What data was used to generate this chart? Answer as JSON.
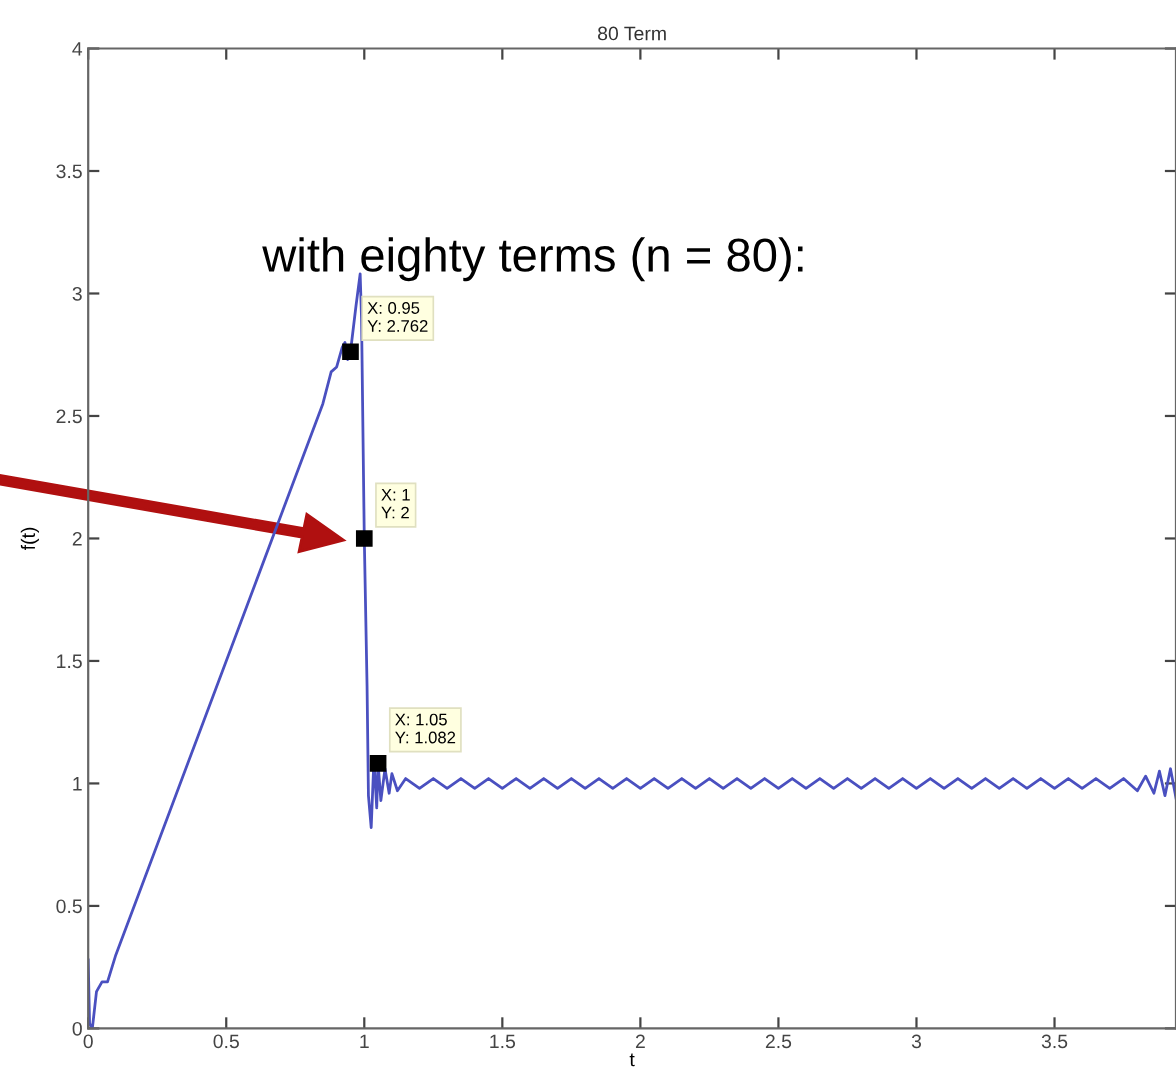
{
  "chart_data": {
    "type": "line",
    "title": "80 Term",
    "xlabel": "t",
    "ylabel": "f(t)",
    "xlim": [
      0,
      3.94
    ],
    "ylim": [
      0,
      4
    ],
    "xticks": [
      0,
      0.5,
      1,
      1.5,
      2,
      2.5,
      3,
      3.5
    ],
    "yticks": [
      0,
      0.5,
      1,
      1.5,
      2,
      2.5,
      3,
      3.5,
      4
    ],
    "grid": false,
    "marker": "none",
    "line_style": "solid",
    "annotations": [
      "with eighty terms (n = 80):",
      {
        "text": "X: 0.95\nY: 2.762",
        "x": 0.95,
        "y": 2.762
      },
      {
        "text": "X: 1\nY: 2",
        "x": 1,
        "y": 2
      },
      {
        "text": "X: 1.05\nY: 1.082",
        "x": 1.05,
        "y": 1.082
      }
    ],
    "series": [
      {
        "color": "#4a50c0",
        "x": [
          0,
          0.005,
          0.015,
          0.03,
          0.05,
          0.07,
          0.1,
          0.2,
          0.3,
          0.4,
          0.5,
          0.6,
          0.7,
          0.8,
          0.85,
          0.88,
          0.9,
          0.92,
          0.93,
          0.94,
          0.95,
          0.97,
          0.985,
          0.99,
          1.0,
          1.01,
          1.015,
          1.025,
          1.035,
          1.045,
          1.05,
          1.06,
          1.075,
          1.09,
          1.1,
          1.12,
          1.15,
          1.2,
          1.25,
          1.3,
          1.35,
          1.4,
          1.45,
          1.5,
          1.55,
          1.6,
          1.65,
          1.7,
          1.75,
          1.8,
          1.85,
          1.9,
          1.95,
          2.0,
          2.05,
          2.1,
          2.15,
          2.2,
          2.25,
          2.3,
          2.35,
          2.4,
          2.45,
          2.5,
          2.55,
          2.6,
          2.65,
          2.7,
          2.75,
          2.8,
          2.85,
          2.9,
          2.95,
          3.0,
          3.05,
          3.1,
          3.15,
          3.2,
          3.25,
          3.3,
          3.35,
          3.4,
          3.45,
          3.5,
          3.55,
          3.6,
          3.65,
          3.7,
          3.75,
          3.8,
          3.83,
          3.86,
          3.88,
          3.9,
          3.92,
          3.94
        ],
        "values": [
          0.28,
          0.02,
          0.0,
          0.15,
          0.19,
          0.19,
          0.3,
          0.6,
          0.9,
          1.2,
          1.5,
          1.8,
          2.1,
          2.4,
          2.55,
          2.68,
          2.7,
          2.78,
          2.8,
          2.73,
          2.762,
          2.95,
          3.08,
          2.9,
          2.0,
          1.4,
          0.95,
          0.82,
          1.1,
          0.9,
          1.082,
          0.93,
          1.06,
          0.96,
          1.04,
          0.97,
          1.02,
          0.98,
          1.02,
          0.98,
          1.02,
          0.98,
          1.02,
          0.98,
          1.02,
          0.98,
          1.02,
          0.98,
          1.02,
          0.98,
          1.02,
          0.98,
          1.02,
          0.98,
          1.02,
          0.98,
          1.02,
          0.98,
          1.02,
          0.98,
          1.02,
          0.98,
          1.02,
          0.98,
          1.02,
          0.98,
          1.02,
          0.98,
          1.02,
          0.98,
          1.02,
          0.98,
          1.02,
          0.98,
          1.02,
          0.98,
          1.02,
          0.98,
          1.02,
          0.98,
          1.02,
          0.98,
          1.02,
          0.98,
          1.02,
          0.98,
          1.02,
          0.98,
          1.02,
          0.97,
          1.03,
          0.96,
          1.05,
          0.95,
          1.06,
          0.94
        ]
      }
    ]
  }
}
